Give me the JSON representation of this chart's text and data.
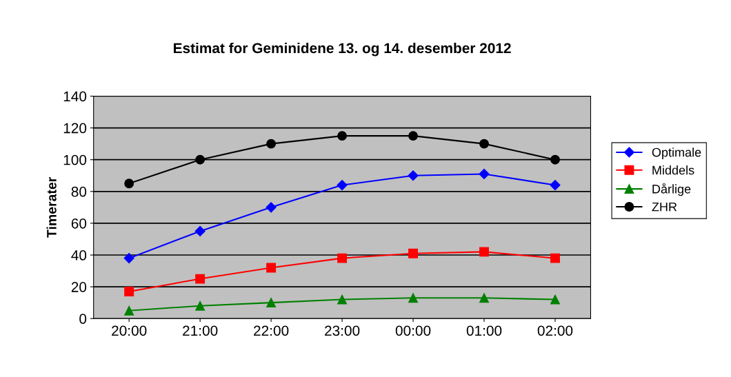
{
  "chart_data": {
    "type": "line",
    "title": "Estimat for Geminidene 13. og 14. desember 2012",
    "ylabel": "Timerater",
    "categories": [
      "20:00",
      "21:00",
      "22:00",
      "23:00",
      "00:00",
      "01:00",
      "02:00"
    ],
    "series": [
      {
        "name": "Optimale",
        "color": "#0000ff",
        "marker": "diamond",
        "values": [
          38,
          55,
          70,
          84,
          90,
          91,
          84
        ]
      },
      {
        "name": "Middels",
        "color": "#ff0000",
        "marker": "square",
        "values": [
          17,
          25,
          32,
          38,
          41,
          42,
          38
        ]
      },
      {
        "name": "Dårlige",
        "color": "#008000",
        "marker": "triangle",
        "values": [
          5,
          8,
          10,
          12,
          13,
          13,
          12
        ]
      },
      {
        "name": "ZHR",
        "color": "#000000",
        "marker": "circle",
        "values": [
          85,
          100,
          110,
          115,
          115,
          110,
          100
        ]
      }
    ],
    "ylim": [
      0,
      140
    ],
    "yticks": [
      0,
      20,
      40,
      60,
      80,
      100,
      120,
      140
    ],
    "grid": "y",
    "legend": "right",
    "line_style": "solid"
  }
}
